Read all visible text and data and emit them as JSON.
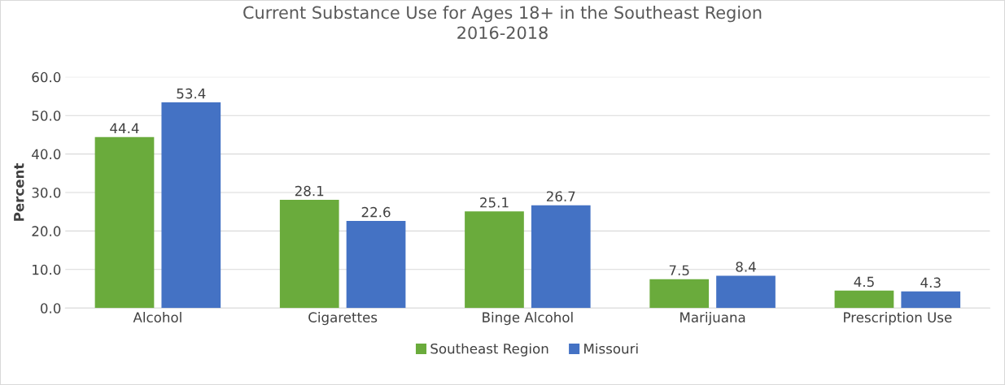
{
  "chart_data": {
    "type": "bar",
    "title": "Current Substance Use for Ages 18+ in the Southeast Region\n2016-2018",
    "ylabel": "Percent",
    "categories": [
      "Alcohol",
      "Cigarettes",
      "Binge Alcohol",
      "Marijuana",
      "Prescription Use"
    ],
    "series": [
      {
        "name": "Southeast Region",
        "color": "#6aab3c",
        "values": [
          44.4,
          28.1,
          25.1,
          7.5,
          4.5
        ]
      },
      {
        "name": "Missouri",
        "color": "#4472c4",
        "values": [
          53.4,
          22.6,
          26.7,
          8.4,
          4.3
        ]
      }
    ],
    "ylim": [
      0,
      60
    ],
    "yticks": [
      {
        "value": 0,
        "label": "0.0"
      },
      {
        "value": 10,
        "label": "10.0"
      },
      {
        "value": 20,
        "label": "20.0"
      },
      {
        "value": 30,
        "label": "30.0"
      },
      {
        "value": 40,
        "label": "40.0"
      },
      {
        "value": 50,
        "label": "50.0"
      },
      {
        "value": 60,
        "label": "60.0"
      }
    ],
    "grid": "y",
    "legend": "bottom",
    "data_labels": true
  }
}
